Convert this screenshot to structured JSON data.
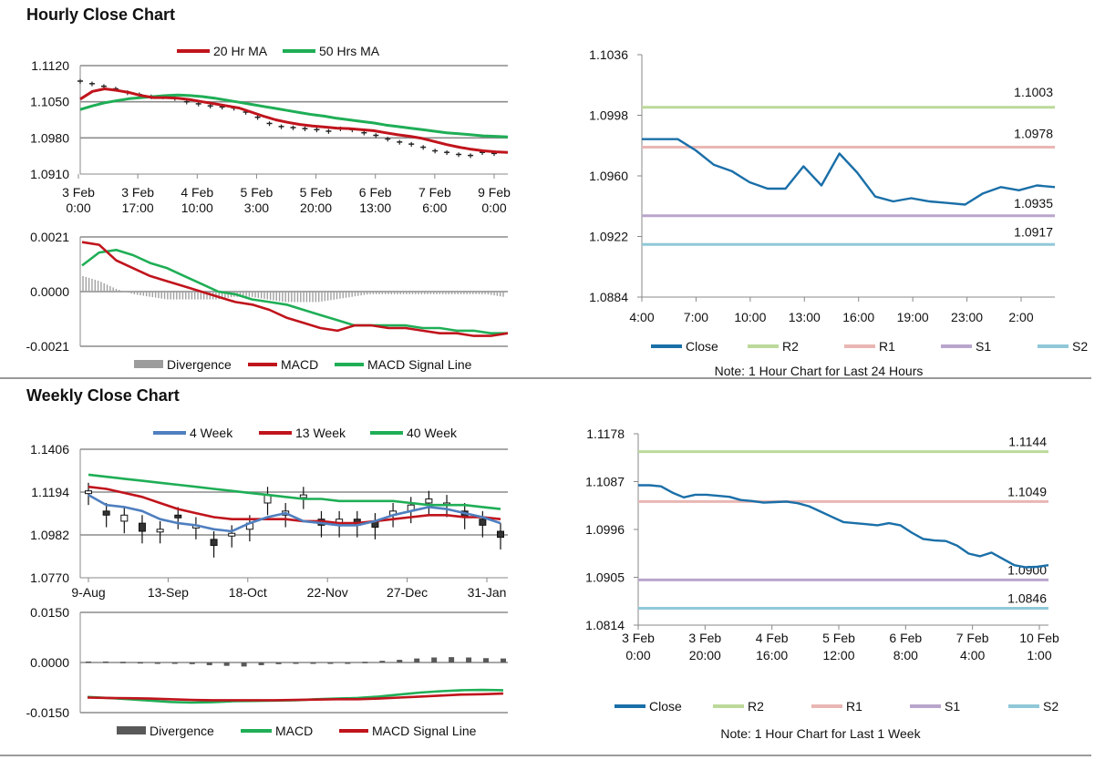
{
  "sections": {
    "hourly_title": "Hourly Close Chart",
    "weekly_title": "Weekly Close Chart"
  },
  "colors": {
    "red": "#c0141c",
    "green": "#1fae56",
    "blue": "#4f7fbf",
    "close": "#1a6fa8",
    "r2": "#bcd99a",
    "r1": "#e9b6b3",
    "s1": "#b9a5cc",
    "s2": "#90c8d8",
    "grid": "#8c8c8c",
    "div_light": "#a0a0a0",
    "div_dark": "#595959"
  },
  "chart_data": [
    {
      "id": "hourly-price",
      "type": "line",
      "title": "",
      "ylim": [
        1.091,
        1.112
      ],
      "y_ticks": [
        "1.1120",
        "1.1050",
        "1.0980",
        "1.0910"
      ],
      "x_ticks": [
        [
          "3 Feb",
          "0:00"
        ],
        [
          "3 Feb",
          "17:00"
        ],
        [
          "4 Feb",
          "10:00"
        ],
        [
          "5 Feb",
          "3:00"
        ],
        [
          "5 Feb",
          "20:00"
        ],
        [
          "6 Feb",
          "13:00"
        ],
        [
          "7 Feb",
          "6:00"
        ],
        [
          "9 Feb",
          "0:00"
        ]
      ],
      "legend": [
        "20 Hr MA",
        "50 Hrs MA"
      ],
      "series": [
        {
          "name": "Price",
          "values": [
            1.109,
            1.1085,
            1.108,
            1.1075,
            1.1068,
            1.1064,
            1.106,
            1.106,
            1.1057,
            1.105,
            1.1046,
            1.1042,
            1.104,
            1.1038,
            1.103,
            1.102,
            1.1008,
            1.1002,
            1.1,
            1.0998,
            1.0996,
            1.0993,
            1.0998,
            1.0996,
            1.099,
            1.0985,
            1.0978,
            1.0972,
            1.0968,
            1.0962,
            1.0955,
            1.0952,
            1.0948,
            1.0946,
            1.0952,
            1.095
          ]
        },
        {
          "name": "20 Hr MA",
          "values": [
            1.1055,
            1.107,
            1.1075,
            1.1072,
            1.1068,
            1.1062,
            1.1058,
            1.1058,
            1.1057,
            1.1054,
            1.105,
            1.1046,
            1.1042,
            1.1038,
            1.103,
            1.1022,
            1.1015,
            1.101,
            1.1006,
            1.1003,
            1.1001,
            1.0999,
            1.0998,
            1.0996,
            1.0994,
            1.099,
            1.0986,
            1.0983,
            1.0979,
            1.0973,
            1.0967,
            1.0962,
            1.0958,
            1.0955,
            1.0953,
            1.0952
          ]
        },
        {
          "name": "50 Hrs MA",
          "values": [
            1.1035,
            1.1042,
            1.1048,
            1.1052,
            1.1056,
            1.1058,
            1.106,
            1.1062,
            1.1063,
            1.1062,
            1.106,
            1.1057,
            1.1053,
            1.1049,
            1.1045,
            1.1041,
            1.1037,
            1.1033,
            1.1029,
            1.1025,
            1.1022,
            1.1018,
            1.1015,
            1.1012,
            1.1009,
            1.1005,
            1.1002,
            1.0999,
            1.0996,
            1.0993,
            1.099,
            1.0988,
            1.0986,
            1.0984,
            1.0983,
            1.0982
          ]
        }
      ]
    },
    {
      "id": "hourly-macd",
      "type": "line",
      "ylim": [
        -0.0021,
        0.0021
      ],
      "y_ticks": [
        "0.0021",
        "0.0000",
        "-0.0021"
      ],
      "legend": [
        "Divergence",
        "MACD",
        "MACD Signal Line"
      ],
      "series": [
        {
          "name": "Divergence",
          "values": [
            0.0006,
            0.0004,
            0.0001,
            -0.0001,
            -0.0002,
            -0.0003,
            -0.0003,
            -0.0003,
            -0.0003,
            -0.0002,
            -0.0002,
            -0.0003,
            -0.0004,
            -0.0004,
            -0.0004,
            -0.0003,
            -0.0002,
            -0.0001,
            -0.0001,
            -0.0001,
            -0.0001,
            -0.0001,
            -0.0001,
            -0.0001,
            -0.0001,
            -0.0002
          ]
        },
        {
          "name": "MACD",
          "values": [
            0.0019,
            0.0018,
            0.0012,
            0.0009,
            0.0006,
            0.0004,
            0.0002,
            0.0,
            -0.0002,
            -0.0004,
            -0.0005,
            -0.0007,
            -0.001,
            -0.0012,
            -0.0014,
            -0.0015,
            -0.0013,
            -0.0013,
            -0.0014,
            -0.0014,
            -0.0015,
            -0.0016,
            -0.0016,
            -0.0017,
            -0.0017,
            -0.0016
          ]
        },
        {
          "name": "MACD Signal Line",
          "values": [
            0.001,
            0.0015,
            0.0016,
            0.0014,
            0.0011,
            0.0009,
            0.0006,
            0.0003,
            0.0,
            -0.0001,
            -0.0003,
            -0.0004,
            -0.0005,
            -0.0007,
            -0.0009,
            -0.0011,
            -0.0013,
            -0.0013,
            -0.0013,
            -0.0013,
            -0.0014,
            -0.0014,
            -0.0015,
            -0.0015,
            -0.0016,
            -0.0016
          ]
        }
      ]
    },
    {
      "id": "hourly-24h",
      "type": "line",
      "ylim": [
        1.0884,
        1.1036
      ],
      "y_ticks": [
        "1.1036",
        "1.0998",
        "1.0960",
        "1.0922",
        "1.0884"
      ],
      "x_ticks": [
        "4:00",
        "7:00",
        "10:00",
        "13:00",
        "16:00",
        "19:00",
        "23:00",
        "2:00"
      ],
      "levels": [
        {
          "name": "R2",
          "value": 1.1003,
          "label": "1.1003",
          "color_key": "r2"
        },
        {
          "name": "R1",
          "value": 1.0978,
          "label": "1.0978",
          "color_key": "r1"
        },
        {
          "name": "S1",
          "value": 1.0935,
          "label": "1.0935",
          "color_key": "s1"
        },
        {
          "name": "S2",
          "value": 1.0917,
          "label": "1.0917",
          "color_key": "s2"
        }
      ],
      "series": [
        {
          "name": "Close",
          "values": [
            1.0983,
            1.0983,
            1.0983,
            1.0976,
            1.0967,
            1.0963,
            1.0956,
            1.0952,
            1.0952,
            1.0966,
            1.0954,
            1.0974,
            1.0962,
            1.0947,
            1.0944,
            1.0946,
            1.0944,
            1.0943,
            1.0942,
            1.0949,
            1.0953,
            1.0951,
            1.0954,
            1.0953
          ]
        }
      ],
      "legend": [
        "Close",
        "R2",
        "R1",
        "S1",
        "S2"
      ],
      "note": "Note: 1 Hour Chart for Last 24 Hours"
    },
    {
      "id": "weekly-price",
      "type": "line",
      "ylim": [
        1.077,
        1.1406
      ],
      "y_ticks": [
        "1.1406",
        "1.1194",
        "1.0982",
        "1.0770"
      ],
      "x_ticks": [
        "9-Aug",
        "13-Sep",
        "18-Oct",
        "22-Nov",
        "27-Dec",
        "31-Jan"
      ],
      "legend": [
        "4 Week",
        "13 Week",
        "40 Week"
      ],
      "series": [
        {
          "name": "4 Week",
          "values": [
            1.118,
            1.113,
            1.112,
            1.11,
            1.106,
            1.104,
            1.103,
            1.101,
            1.1,
            1.104,
            1.107,
            1.109,
            1.105,
            1.104,
            1.103,
            1.103,
            1.105,
            1.108,
            1.11,
            1.112,
            1.111,
            1.109,
            1.107,
            1.104
          ]
        },
        {
          "name": "13 Week",
          "values": [
            1.122,
            1.121,
            1.119,
            1.117,
            1.114,
            1.111,
            1.109,
            1.107,
            1.106,
            1.106,
            1.106,
            1.106,
            1.105,
            1.105,
            1.104,
            1.104,
            1.105,
            1.106,
            1.107,
            1.108,
            1.108,
            1.107,
            1.107,
            1.106
          ]
        },
        {
          "name": "40 Week",
          "values": [
            1.128,
            1.127,
            1.126,
            1.125,
            1.124,
            1.123,
            1.122,
            1.121,
            1.12,
            1.119,
            1.118,
            1.117,
            1.116,
            1.116,
            1.115,
            1.115,
            1.115,
            1.115,
            1.114,
            1.113,
            1.113,
            1.113,
            1.112,
            1.111
          ]
        },
        {
          "name": "Candles (open, close)",
          "values": [
            [
              1.119,
              1.12
            ],
            [
              1.11,
              1.108
            ],
            [
              1.105,
              1.108
            ],
            [
              1.104,
              1.1
            ],
            [
              1.1,
              1.101
            ],
            [
              1.108,
              1.107
            ],
            [
              1.102,
              1.103
            ],
            [
              1.096,
              1.093
            ],
            [
              1.098,
              1.099
            ],
            [
              1.101,
              1.104
            ],
            [
              1.114,
              1.118
            ],
            [
              1.108,
              1.11
            ],
            [
              1.117,
              1.118
            ],
            [
              1.106,
              1.103
            ],
            [
              1.103,
              1.106
            ],
            [
              1.106,
              1.103
            ],
            [
              1.105,
              1.102
            ],
            [
              1.108,
              1.11
            ],
            [
              1.11,
              1.113
            ],
            [
              1.114,
              1.116
            ],
            [
              1.113,
              1.114
            ],
            [
              1.11,
              1.107
            ],
            [
              1.106,
              1.103
            ],
            [
              1.1,
              1.097
            ]
          ]
        }
      ]
    },
    {
      "id": "weekly-macd",
      "type": "line",
      "ylim": [
        -0.015,
        0.015
      ],
      "y_ticks": [
        "0.0150",
        "0.0000",
        "-0.0150"
      ],
      "legend": [
        "Divergence",
        "MACD",
        "MACD Signal Line"
      ],
      "series": [
        {
          "name": "Divergence",
          "values": [
            0.0003,
            0.0003,
            0.0002,
            0.0001,
            0.0,
            -0.0003,
            -0.0005,
            -0.0008,
            -0.001,
            -0.0012,
            -0.0008,
            -0.0005,
            -0.0003,
            -0.0002,
            -0.0002,
            -0.0001,
            0.0002,
            0.0005,
            0.0008,
            0.0012,
            0.0015,
            0.0016,
            0.0015,
            0.0013,
            0.0012
          ]
        },
        {
          "name": "MACD",
          "values": [
            -0.0103,
            -0.0106,
            -0.011,
            -0.0114,
            -0.0118,
            -0.012,
            -0.0119,
            -0.0116,
            -0.0115,
            -0.0114,
            -0.0113,
            -0.011,
            -0.0108,
            -0.0106,
            -0.0102,
            -0.0096,
            -0.009,
            -0.0086,
            -0.0083,
            -0.0082,
            -0.0083
          ]
        },
        {
          "name": "MACD Signal Line",
          "values": [
            -0.0105,
            -0.0106,
            -0.0107,
            -0.0108,
            -0.011,
            -0.0112,
            -0.0113,
            -0.0113,
            -0.0113,
            -0.0113,
            -0.0112,
            -0.0111,
            -0.011,
            -0.011,
            -0.0108,
            -0.0105,
            -0.0102,
            -0.0099,
            -0.0096,
            -0.0095,
            -0.0093
          ]
        }
      ]
    },
    {
      "id": "weekly-1w",
      "type": "line",
      "ylim": [
        1.0814,
        1.1178
      ],
      "y_ticks": [
        "1.1178",
        "1.1087",
        "1.0996",
        "1.0905",
        "1.0814"
      ],
      "x_ticks": [
        [
          "3 Feb",
          "0:00"
        ],
        [
          "3 Feb",
          "20:00"
        ],
        [
          "4 Feb",
          "16:00"
        ],
        [
          "5 Feb",
          "12:00"
        ],
        [
          "6 Feb",
          "8:00"
        ],
        [
          "7 Feb",
          "4:00"
        ],
        [
          "10 Feb",
          "1:00"
        ]
      ],
      "levels": [
        {
          "name": "R2",
          "value": 1.1144,
          "label": "1.1144",
          "color_key": "r2"
        },
        {
          "name": "R1",
          "value": 1.1049,
          "label": "1.1049",
          "color_key": "r1"
        },
        {
          "name": "S1",
          "value": 1.09,
          "label": "1.0900",
          "color_key": "s1"
        },
        {
          "name": "S2",
          "value": 1.0846,
          "label": "1.0846",
          "color_key": "s2"
        }
      ],
      "series": [
        {
          "name": "Close",
          "values": [
            1.108,
            1.108,
            1.1078,
            1.1066,
            1.1057,
            1.1062,
            1.1062,
            1.106,
            1.1058,
            1.1052,
            1.105,
            1.1047,
            1.1048,
            1.1049,
            1.1046,
            1.104,
            1.103,
            1.102,
            1.101,
            1.1008,
            1.1006,
            1.1004,
            1.1008,
            1.1004,
            1.099,
            1.0978,
            1.0975,
            1.0974,
            1.0965,
            1.095,
            1.0945,
            1.0952,
            1.094,
            1.0928,
            1.0924,
            1.0925,
            1.0928
          ]
        }
      ],
      "legend": [
        "Close",
        "R2",
        "R1",
        "S1",
        "S2"
      ],
      "note": "Note: 1 Hour Chart for Last 1 Week"
    }
  ]
}
